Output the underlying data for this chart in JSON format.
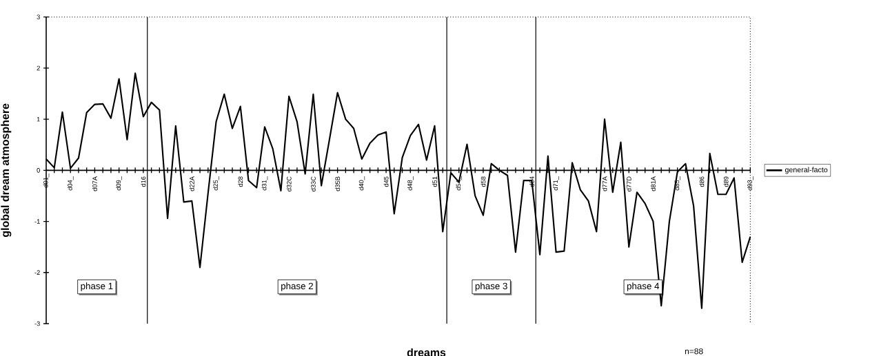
{
  "chart_data": {
    "type": "line",
    "xlabel": "dreams",
    "ylabel": "global dream atmosphere",
    "categories": [
      "d01_",
      null,
      null,
      "d04_",
      null,
      null,
      "d07A",
      null,
      null,
      "d09_",
      null,
      null,
      "d16",
      null,
      null,
      null,
      null,
      null,
      "d22A",
      null,
      null,
      "d25_",
      null,
      null,
      "d28",
      null,
      null,
      "d31_",
      null,
      null,
      "d32C",
      null,
      null,
      "d33C",
      null,
      null,
      "d35B",
      null,
      null,
      "d40_",
      null,
      null,
      "d45",
      null,
      null,
      "d48_",
      null,
      null,
      "d51",
      null,
      null,
      "d54_",
      null,
      null,
      "d58",
      null,
      null,
      null,
      null,
      null,
      "d64",
      null,
      null,
      "d71_",
      null,
      null,
      null,
      null,
      null,
      "d77A",
      null,
      null,
      "d77D",
      null,
      null,
      "d81A",
      null,
      null,
      "d85_",
      null,
      null,
      "d86",
      null,
      null,
      "d89",
      null,
      null,
      "d93_"
    ],
    "series": [
      {
        "name": "general-facto",
        "color": "#000000",
        "values": [
          0.22,
          0.05,
          1.14,
          0.04,
          0.24,
          1.13,
          1.29,
          1.3,
          1.02,
          1.79,
          0.6,
          1.9,
          1.05,
          1.33,
          1.18,
          -0.94,
          0.87,
          -0.62,
          -0.6,
          -1.9,
          -0.45,
          0.95,
          1.49,
          0.82,
          1.25,
          -0.2,
          -0.34,
          0.85,
          0.42,
          -0.4,
          1.45,
          0.95,
          -0.07,
          1.49,
          -0.3,
          0.6,
          1.52,
          1.0,
          0.82,
          0.22,
          0.53,
          0.69,
          0.75,
          -0.85,
          0.25,
          0.68,
          0.9,
          0.2,
          0.87,
          -1.2,
          -0.05,
          -0.23,
          0.51,
          -0.5,
          -0.88,
          0.13,
          0.0,
          -0.1,
          -1.6,
          -0.2,
          -0.2,
          -1.65,
          0.28,
          -1.6,
          -1.58,
          0.15,
          -0.38,
          -0.6,
          -1.2,
          1.0,
          -0.43,
          0.55,
          -1.5,
          -0.43,
          -0.65,
          -1.0,
          -2.65,
          -1.0,
          -0.03,
          0.13,
          -0.7,
          -2.7,
          0.33,
          -0.47,
          -0.47,
          -0.15,
          -1.8,
          -1.3
        ]
      }
    ],
    "ylim": [
      -3,
      3
    ],
    "yticks": [
      -3,
      -2,
      -1,
      0,
      1,
      2,
      3
    ],
    "grid": false,
    "legend": "right",
    "marker": "none",
    "line_style": "solid",
    "annotations": [
      "phase 1",
      "phase 2",
      "phase 3",
      "phase 4",
      "n=88"
    ]
  }
}
